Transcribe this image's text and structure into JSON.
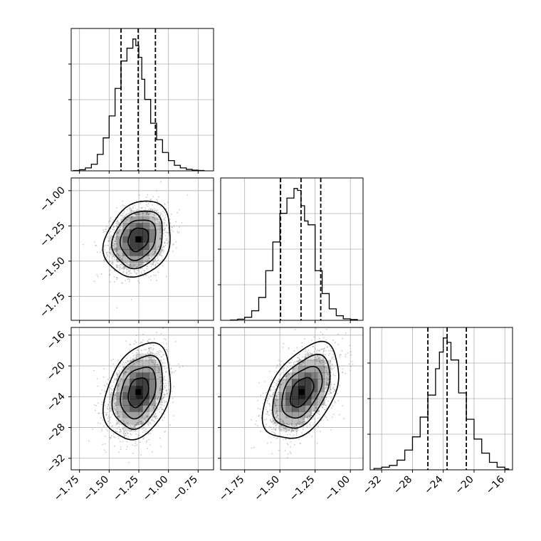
{
  "chart_data": {
    "type": "corner",
    "grid": true,
    "params": [
      {
        "range": [
          -1.82,
          -0.62
        ],
        "ticks": [
          -1.75,
          -1.5,
          -1.25,
          -1.0,
          -0.75
        ],
        "tick_labels": [
          "−1.75",
          "−1.50",
          "−1.25",
          "−1.00",
          "−0.75"
        ],
        "quantiles": [
          -1.4,
          -1.255,
          -1.11
        ],
        "hist": {
          "edges": [
            -1.8,
            -1.75,
            -1.7,
            -1.65,
            -1.6,
            -1.55,
            -1.5,
            -1.45,
            -1.4,
            -1.35,
            -1.3,
            -1.275,
            -1.25,
            -1.225,
            -1.2,
            -1.15,
            -1.1,
            -1.05,
            -1.0,
            -0.95,
            -0.9,
            -0.85,
            -0.8,
            -0.75,
            -0.7
          ],
          "counts": [
            1,
            3,
            8,
            18,
            45,
            90,
            150,
            225,
            300,
            335,
            360,
            342,
            310,
            250,
            195,
            130,
            85,
            50,
            28,
            15,
            8,
            4,
            2,
            1
          ]
        }
      },
      {
        "range": [
          -1.92,
          -0.91
        ],
        "ticks": [
          -1.75,
          -1.5,
          -1.25,
          -1.0
        ],
        "tick_labels": [
          "−1.75",
          "−1.50",
          "−1.25",
          "−1.00"
        ],
        "quantiles": [
          -1.495,
          -1.35,
          -1.21
        ],
        "hist": {
          "edges": [
            -1.85,
            -1.8,
            -1.75,
            -1.7,
            -1.65,
            -1.6,
            -1.55,
            -1.5,
            -1.45,
            -1.4,
            -1.375,
            -1.35,
            -1.325,
            -1.3,
            -1.25,
            -1.2,
            -1.15,
            -1.1,
            -1.05,
            -1.0,
            -0.95
          ],
          "counts": [
            1,
            3,
            8,
            25,
            60,
            130,
            205,
            280,
            320,
            345,
            340,
            300,
            260,
            250,
            130,
            70,
            30,
            12,
            4,
            2
          ]
        }
      },
      {
        "range": [
          -33.5,
          -15.0
        ],
        "ticks": [
          -32,
          -28,
          -24,
          -20,
          -16
        ],
        "tick_labels": [
          "−32",
          "−28",
          "−24",
          "−20",
          "−16"
        ],
        "quantiles": [
          -26.0,
          -23.5,
          -21.0
        ],
        "hist": {
          "edges": [
            -33,
            -32,
            -31,
            -30,
            -29,
            -28,
            -27,
            -26,
            -25,
            -24.5,
            -24,
            -23.5,
            -23,
            -22,
            -21,
            -20,
            -19,
            -18,
            -17,
            -16,
            -15.5
          ],
          "counts": [
            3,
            6,
            10,
            22,
            45,
            75,
            120,
            170,
            230,
            268,
            300,
            290,
            250,
            175,
            115,
            70,
            38,
            17,
            6,
            2
          ]
        }
      }
    ],
    "pairs": [
      {
        "x_param": 0,
        "y_param": 1,
        "center": [
          -1.255,
          -1.345
        ],
        "sigma": [
          0.115,
          0.11
        ],
        "rho": 0.2,
        "level_radii": [
          0.75,
          1.3,
          1.85,
          2.45
        ]
      },
      {
        "x_param": 0,
        "y_param": 2,
        "center": [
          -1.255,
          -23.4
        ],
        "sigma": [
          0.115,
          2.55
        ],
        "rho": 0.3,
        "level_radii": [
          0.75,
          1.3,
          1.85,
          2.45
        ]
      },
      {
        "x_param": 1,
        "y_param": 2,
        "center": [
          -1.345,
          -23.4
        ],
        "sigma": [
          0.11,
          2.55
        ],
        "rho": 0.45,
        "level_radii": [
          0.75,
          1.3,
          1.85,
          2.45
        ]
      }
    ],
    "colors": {
      "line": "#000000",
      "grid": "#b0b0b0",
      "points": "#8c8c8c",
      "density": "#000000"
    }
  }
}
